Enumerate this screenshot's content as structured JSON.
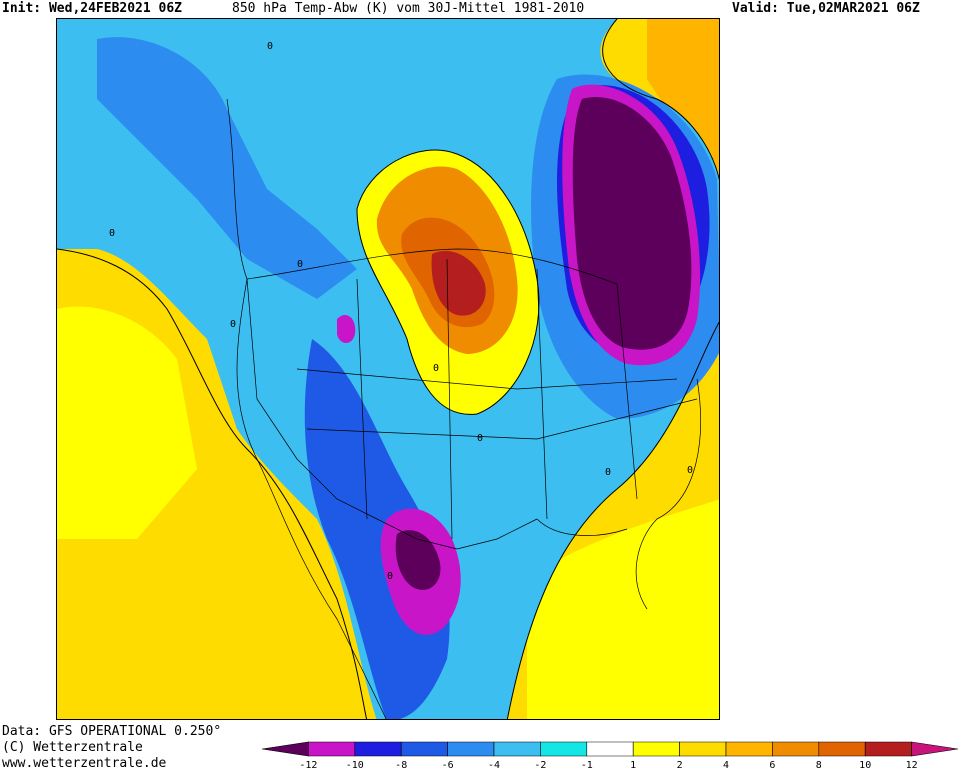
{
  "header": {
    "init": "Init: Wed,24FEB2021 06Z",
    "title": "850 hPa Temp-Abw (K) vom 30J-Mittel 1981-2010",
    "valid": "Valid: Tue,02MAR2021 06Z"
  },
  "footer": {
    "data_source": "Data: GFS OPERATIONAL 0.250°",
    "copyright": "(C) Wetterzentrale",
    "website": "www.wetterzentrale.de"
  },
  "colorbar": {
    "ticks": [
      "-12",
      "-10",
      "-8",
      "-6",
      "-4",
      "-2",
      "-1",
      "1",
      "2",
      "4",
      "6",
      "8",
      "10",
      "12"
    ],
    "colors": [
      "#5c005c",
      "#c815c8",
      "#1e1ee0",
      "#1e5ae6",
      "#2d8cf0",
      "#3cbef0",
      "#14e6e6",
      "#ffffff",
      "#ffff00",
      "#ffdc00",
      "#ffb400",
      "#f08c00",
      "#e06400",
      "#b41e1e",
      "#c8147a"
    ]
  },
  "map": {
    "contour_labels": [
      "0",
      "0",
      "0",
      "0",
      "0",
      "0",
      "0",
      "0",
      "0",
      "0"
    ],
    "anomalies": {
      "warm_core_north_central": "10",
      "cold_core_northeast": "-12",
      "cold_core_southwest": "-12"
    }
  }
}
